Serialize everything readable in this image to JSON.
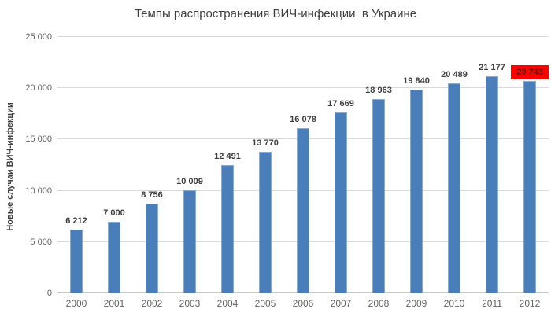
{
  "chart_data": {
    "type": "bar",
    "title": "Темпы распространения ВИЧ-инфекции  в Украине",
    "xlabel": "",
    "ylabel": "Новые случаи ВИЧ-инфекции",
    "categories": [
      "2000",
      "2001",
      "2002",
      "2003",
      "2004",
      "2005",
      "2006",
      "2007",
      "2008",
      "2009",
      "2010",
      "2011",
      "2012"
    ],
    "values": [
      6212,
      7000,
      8756,
      10009,
      12491,
      13770,
      16078,
      17669,
      18963,
      19840,
      20489,
      21177,
      20743
    ],
    "value_labels": [
      "6 212",
      "7 000",
      "8 756",
      "10 009",
      "12 491",
      "13 770",
      "16 078",
      "17 669",
      "18 963",
      "19 840",
      "20 489",
      "21 177",
      "20 743"
    ],
    "highlight_index": 12,
    "ylim": [
      0,
      25000
    ],
    "yticks": [
      0,
      5000,
      10000,
      15000,
      20000,
      25000
    ],
    "ytick_labels": [
      "0",
      "5 000",
      "10 000",
      "15 000",
      "20 000",
      "25 000"
    ],
    "grid": true,
    "legend": "none",
    "colors": {
      "bar": "#4A7EBB",
      "highlight_bg": "#FE0000",
      "highlight_text": "#6B120E",
      "value_label": "#404040",
      "axis_text": "#646464",
      "gridline": "#D9D9D9",
      "title": "#404040"
    }
  }
}
